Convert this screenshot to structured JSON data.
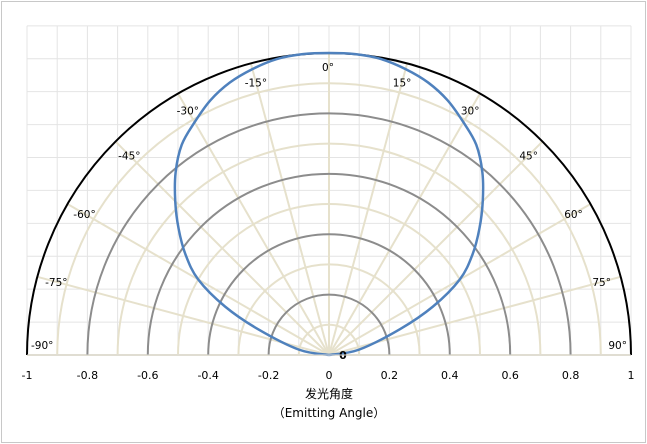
{
  "chart_data": {
    "type": "polar",
    "title": "",
    "xlabel": "发光角度",
    "xlabel_sub": "（Emitting Angle）",
    "x_ticks": [
      -1,
      -0.8,
      -0.6,
      -0.4,
      -0.2,
      0,
      0.2,
      0.4,
      0.6,
      0.8,
      1
    ],
    "x_tick_labels": [
      "-1",
      "-0.8",
      "-0.6",
      "-0.4",
      "-0.2",
      "0",
      "0.2",
      "0.4",
      "0.6",
      "0.8",
      "1"
    ],
    "xlim": [
      -1,
      1
    ],
    "rlim": [
      0,
      1
    ],
    "radial_rings": [
      0.1,
      0.2,
      0.3,
      0.4,
      0.5,
      0.6,
      0.7,
      0.8,
      0.9,
      1.0
    ],
    "major_rings": [
      0.2,
      0.4,
      0.6,
      0.8
    ],
    "angle_spokes_deg": [
      -90,
      -75,
      -60,
      -45,
      -30,
      -15,
      0,
      15,
      30,
      45,
      60,
      75,
      90
    ],
    "angle_labels": [
      "-90°",
      "-75°",
      "-60°",
      "-45°",
      "-30°",
      "-15°",
      "0°",
      "15°",
      "30°",
      "45°",
      "60°",
      "75°",
      "90°"
    ],
    "center_label": "0",
    "grid": true,
    "colors": {
      "series": "#4F81BD",
      "outer_arc": "#000000",
      "major_ring": "#8c8c8c",
      "minor_grid": "#E6E1CC",
      "rect_grid": "#e4e4e4"
    },
    "series": [
      {
        "angles_deg": [
          -90,
          -80,
          -70,
          -65,
          -60,
          -55,
          -50,
          -45,
          -40,
          -35,
          -30,
          -25,
          -20,
          -15,
          -10,
          -5,
          0,
          5,
          10,
          15,
          20,
          25,
          30,
          35,
          40,
          45,
          50,
          55,
          60,
          65,
          70,
          80,
          90
        ],
        "r": [
          0.0,
          0.1,
          0.25,
          0.38,
          0.5,
          0.58,
          0.65,
          0.72,
          0.79,
          0.85,
          0.89,
          0.93,
          0.96,
          0.98,
          0.995,
          1.0,
          1.0,
          1.0,
          0.995,
          0.98,
          0.96,
          0.93,
          0.89,
          0.85,
          0.79,
          0.72,
          0.65,
          0.58,
          0.5,
          0.38,
          0.25,
          0.1,
          0.0
        ]
      }
    ]
  }
}
